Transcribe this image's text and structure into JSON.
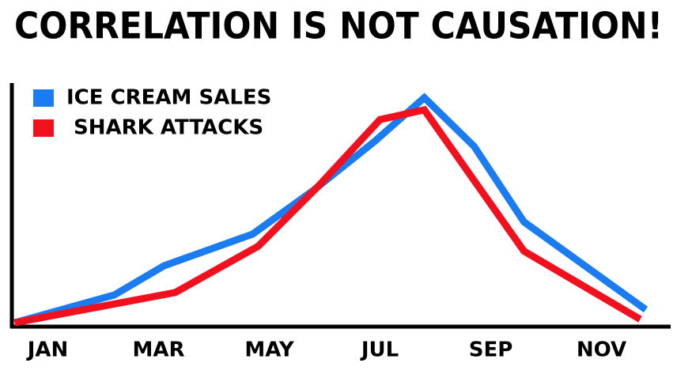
{
  "chart_data": {
    "type": "line",
    "title": "CORRELATION IS NOT CAUSATION!",
    "xlim": [
      0.35,
      12.25
    ],
    "xticks": [
      {
        "value": 1,
        "label": "JAN"
      },
      {
        "value": 3,
        "label": "MAR"
      },
      {
        "value": 5,
        "label": "MAY"
      },
      {
        "value": 7,
        "label": "JUL"
      },
      {
        "value": 9,
        "label": "SEP"
      },
      {
        "value": 11,
        "label": "NOV"
      }
    ],
    "ylim": [
      0,
      100
    ],
    "legend": "upper left",
    "series": [
      {
        "name": "ICE CREAM SALES",
        "color": "#1a7cf0",
        "x": [
          0.4,
          2.2,
          3.1,
          4.7,
          5.8,
          6.9,
          7.8,
          8.7,
          9.6,
          11.8
        ],
        "values": [
          1.6,
          13,
          25,
          38,
          56,
          76,
          94,
          74,
          43,
          7
        ]
      },
      {
        "name": " SHARK ATTACKS",
        "color": "#f0101e",
        "x": [
          0.4,
          3.3,
          4.8,
          5.9,
          7.0,
          7.8,
          8.7,
          9.6,
          11.7
        ],
        "values": [
          1.6,
          14,
          33,
          58,
          85,
          89,
          60,
          31,
          3
        ]
      }
    ]
  }
}
